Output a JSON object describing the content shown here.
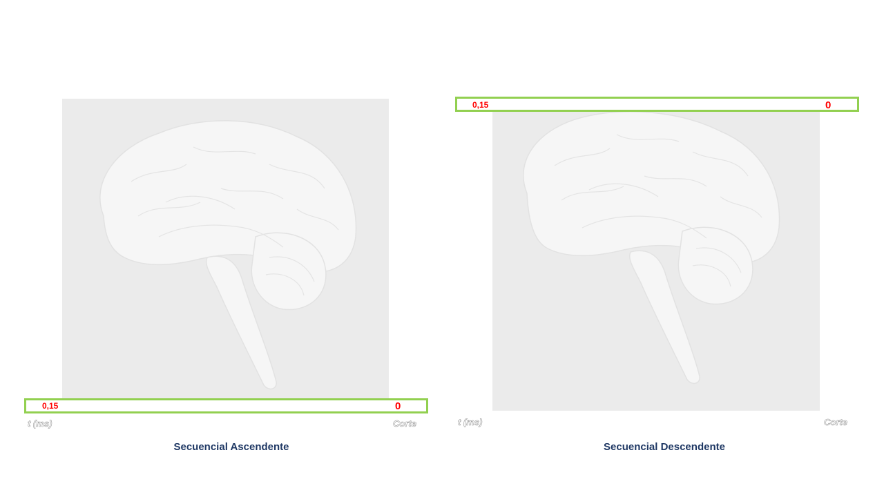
{
  "panels": [
    {
      "caption": "Secuencial Ascendente",
      "bar_start_value": "0,15",
      "bar_end_value": "0",
      "axis_left_label": "t (ms)",
      "axis_right_label": "Corte",
      "bar_position": "bottom"
    },
    {
      "caption": "Secuencial Descendente",
      "bar_start_value": "0,15",
      "bar_end_value": "0",
      "axis_left_label": "t (ms)",
      "axis_right_label": "Corte",
      "bar_position": "top"
    }
  ],
  "colors": {
    "bar_border": "#92d050",
    "value_text": "#ff0000",
    "caption_text": "#1f3864",
    "image_background": "#ebebeb"
  }
}
